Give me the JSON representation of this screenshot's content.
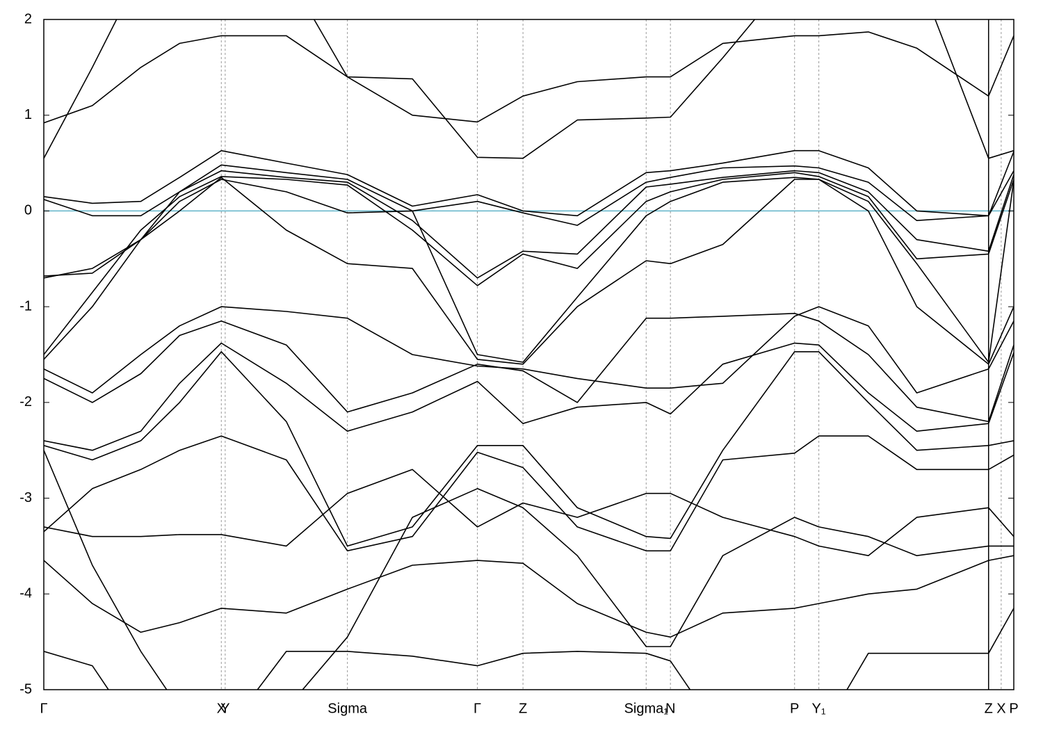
{
  "chart_data": {
    "type": "line",
    "x": [
      0,
      0.05,
      0.1,
      0.14,
      0.183,
      0.25,
      0.313,
      0.38,
      0.447,
      0.494,
      0.55,
      0.621,
      0.646,
      0.7,
      0.774,
      0.799,
      0.85,
      0.9,
      0.974,
      1.0
    ],
    "xlim": [
      0,
      1.0
    ],
    "xticks": [
      {
        "value": 0,
        "label": "Γ"
      },
      {
        "value": 0.183,
        "label": "X"
      },
      {
        "value": 0.187,
        "label": "Y"
      },
      {
        "value": 0.313,
        "label": "Sigma"
      },
      {
        "value": 0.447,
        "label": "Γ"
      },
      {
        "value": 0.494,
        "label": "Z"
      },
      {
        "value": 0.621,
        "label": "Sigma₁"
      },
      {
        "value": 0.646,
        "label": "N"
      },
      {
        "value": 0.774,
        "label": "P"
      },
      {
        "value": 0.799,
        "label": "Y₁"
      },
      {
        "value": 0.974,
        "label": "Z"
      },
      {
        "value": 0.987,
        "label": "X"
      },
      {
        "value": 1.0,
        "label": "P"
      }
    ],
    "path_break": 0.974,
    "ylim": [
      -5,
      2
    ],
    "yticks": [
      2,
      1,
      0,
      -1,
      -2,
      -3,
      -4,
      -5
    ],
    "fermi_level": 0,
    "fermi_color": "#5fb3c8",
    "grid": "x-dashed",
    "color": "#000000",
    "series": [
      {
        "values": [
          0.92,
          1.1,
          1.5,
          1.75,
          1.83,
          1.83,
          1.4,
          1.0,
          0.93,
          1.2,
          1.35,
          1.4,
          1.4,
          1.75,
          1.83,
          1.83,
          1.87,
          1.7,
          1.2,
          1.83
        ]
      },
      {
        "values": [
          0.55,
          1.5,
          2.5,
          2.5,
          2.5,
          2.5,
          1.4,
          1.38,
          0.56,
          0.55,
          0.95,
          0.97,
          0.98,
          1.6,
          2.5,
          2.5,
          2.5,
          2.5,
          0.55,
          0.63
        ]
      },
      {
        "values": [
          0.15,
          0.08,
          0.1,
          0.35,
          0.63,
          0.5,
          0.38,
          0.05,
          0.17,
          0.0,
          -0.05,
          0.4,
          0.42,
          0.5,
          0.63,
          0.63,
          0.45,
          0.0,
          -0.05,
          0.62
        ]
      },
      {
        "values": [
          0.12,
          -0.05,
          -0.05,
          0.2,
          0.48,
          0.4,
          0.33,
          0.0,
          0.1,
          -0.02,
          -0.15,
          0.3,
          0.35,
          0.45,
          0.47,
          0.45,
          0.3,
          -0.1,
          -0.05,
          0.42
        ]
      },
      {
        "values": [
          -0.68,
          -0.65,
          -0.3,
          0.2,
          0.42,
          0.35,
          0.3,
          -0.1,
          -0.7,
          -0.42,
          -0.45,
          0.25,
          0.28,
          0.35,
          0.42,
          0.4,
          0.2,
          -0.3,
          -0.42,
          0.38
        ]
      },
      {
        "values": [
          -1.5,
          -0.85,
          -0.2,
          0.15,
          0.36,
          0.33,
          0.27,
          -0.2,
          -0.78,
          -0.45,
          -0.6,
          0.1,
          0.2,
          0.33,
          0.4,
          0.36,
          0.15,
          -0.5,
          -0.45,
          0.33
        ]
      },
      {
        "values": [
          -1.55,
          -1.0,
          -0.3,
          0.1,
          0.33,
          0.2,
          -0.02,
          0.0,
          -1.5,
          -1.58,
          -0.9,
          -0.05,
          0.1,
          0.3,
          0.35,
          0.33,
          0.1,
          -0.55,
          -1.58,
          0.32
        ]
      },
      {
        "values": [
          -0.7,
          -0.6,
          -0.3,
          0.0,
          0.35,
          -0.2,
          -0.55,
          -0.6,
          -1.55,
          -1.6,
          -1.0,
          -0.52,
          -0.55,
          -0.35,
          0.33,
          0.33,
          0.0,
          -1.0,
          -1.6,
          -1.0
        ]
      },
      {
        "values": [
          -1.65,
          -1.9,
          -1.5,
          -1.2,
          -1.0,
          -1.05,
          -1.12,
          -1.5,
          -1.62,
          -1.65,
          -1.75,
          -1.85,
          -1.85,
          -1.8,
          -1.1,
          -1.0,
          -1.2,
          -1.9,
          -1.65,
          -1.15
        ]
      },
      {
        "values": [
          -1.75,
          -2.0,
          -1.7,
          -1.3,
          -1.15,
          -1.4,
          -2.1,
          -1.9,
          -1.6,
          -1.67,
          -2.0,
          -1.12,
          -1.12,
          -1.1,
          -1.07,
          -1.15,
          -1.5,
          -2.05,
          -2.2,
          -1.4
        ]
      },
      {
        "values": [
          -2.4,
          -2.5,
          -2.3,
          -1.8,
          -1.38,
          -1.8,
          -2.3,
          -2.1,
          -1.78,
          -2.22,
          -2.05,
          -2.0,
          -2.12,
          -1.6,
          -1.38,
          -1.4,
          -1.9,
          -2.3,
          -2.22,
          -1.48
        ]
      },
      {
        "values": [
          -2.45,
          -2.6,
          -2.4,
          -2.0,
          -1.47,
          -2.2,
          -3.5,
          -3.3,
          -2.45,
          -2.45,
          -3.1,
          -3.4,
          -3.42,
          -2.5,
          -1.47,
          -1.47,
          -2.0,
          -2.5,
          -2.45,
          -2.4
        ]
      },
      {
        "values": [
          -3.35,
          -2.9,
          -2.7,
          -2.5,
          -2.35,
          -2.6,
          -3.55,
          -3.4,
          -2.52,
          -2.68,
          -3.3,
          -3.55,
          -3.55,
          -2.6,
          -2.53,
          -2.35,
          -2.35,
          -2.7,
          -2.7,
          -2.55
        ]
      },
      {
        "values": [
          -3.3,
          -3.4,
          -3.4,
          -3.38,
          -3.38,
          -3.5,
          -2.95,
          -2.7,
          -3.3,
          -3.05,
          -3.2,
          -2.95,
          -2.95,
          -3.2,
          -3.4,
          -3.5,
          -3.6,
          -3.2,
          -3.1,
          -3.4
        ]
      },
      {
        "values": [
          -3.65,
          -4.1,
          -4.4,
          -4.3,
          -4.15,
          -4.2,
          -3.95,
          -3.7,
          -3.65,
          -3.68,
          -4.1,
          -4.4,
          -4.45,
          -4.2,
          -4.15,
          -4.1,
          -4.0,
          -3.95,
          -3.65,
          -3.6
        ]
      },
      {
        "values": [
          -4.6,
          -4.75,
          -5.5,
          -5.5,
          -5.5,
          -4.6,
          -4.6,
          -4.65,
          -4.75,
          -4.62,
          -4.6,
          -4.62,
          -4.7,
          -5.5,
          -5.5,
          -5.5,
          -4.62,
          -4.62,
          -4.62,
          -4.15
        ]
      },
      {
        "values": [
          -2.5,
          -3.7,
          -4.6,
          -5.2,
          -5.5,
          -5.2,
          -4.45,
          -3.2,
          -2.9,
          -3.1,
          -3.6,
          -4.55,
          -4.55,
          -3.6,
          -3.2,
          -3.3,
          -3.4,
          -3.6,
          -3.5,
          -3.5
        ]
      }
    ]
  }
}
